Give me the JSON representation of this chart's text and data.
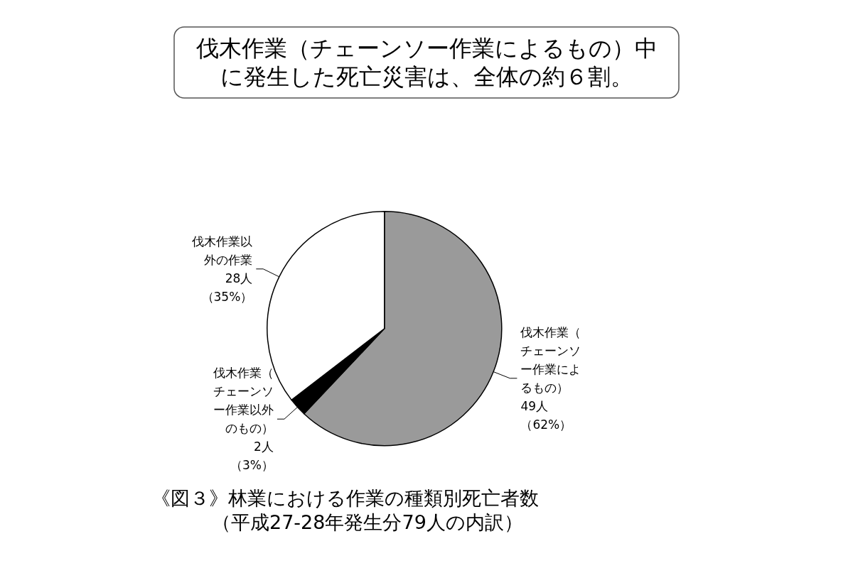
{
  "chart_data": {
    "type": "pie",
    "title": "伐木作業（チェーンソー作業によるもの）中に発生した死亡災害は、全体の約６割。",
    "categories": [
      "伐木作業（チェーンソー作業によるもの）",
      "伐木作業（チェーンソー作業以外のもの）",
      "伐木作業以外の作業"
    ],
    "values": [
      49,
      2,
      28
    ],
    "value_labels": [
      "49人（62%）",
      "2人（3%）",
      "28人（35%）"
    ],
    "colors": [
      "#9a9a9a",
      "#000000",
      "#ffffff"
    ],
    "annotations": [
      "《図３》林業における作業の種類別死亡者数",
      "（平成27-28年発生分79人の内訳）"
    ],
    "legend": false
  }
}
